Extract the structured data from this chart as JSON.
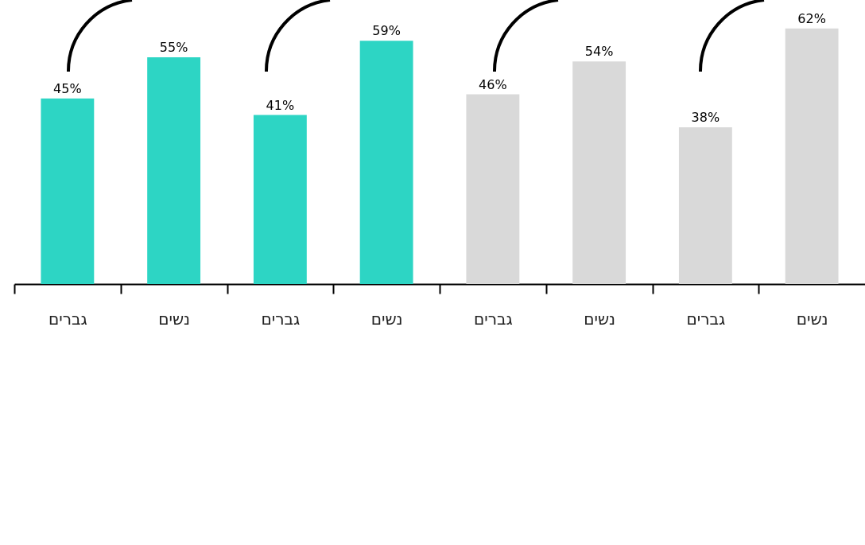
{
  "chart_data": {
    "type": "bar",
    "categories": [
      "גברים",
      "נשים",
      "גברים",
      "נשים",
      "גברים",
      "נשים",
      "גברים",
      "נשים"
    ],
    "values": [
      45,
      55,
      41,
      59,
      46,
      54,
      38,
      62
    ],
    "value_labels": [
      "45%",
      "55%",
      "41%",
      "59%",
      "46%",
      "54%",
      "38%",
      "62%"
    ],
    "colors": [
      "#2dd5c4",
      "#2dd5c4",
      "#2dd5c4",
      "#2dd5c4",
      "#d9d9d9",
      "#d9d9d9",
      "#d9d9d9",
      "#d9d9d9"
    ],
    "grid": false
  }
}
